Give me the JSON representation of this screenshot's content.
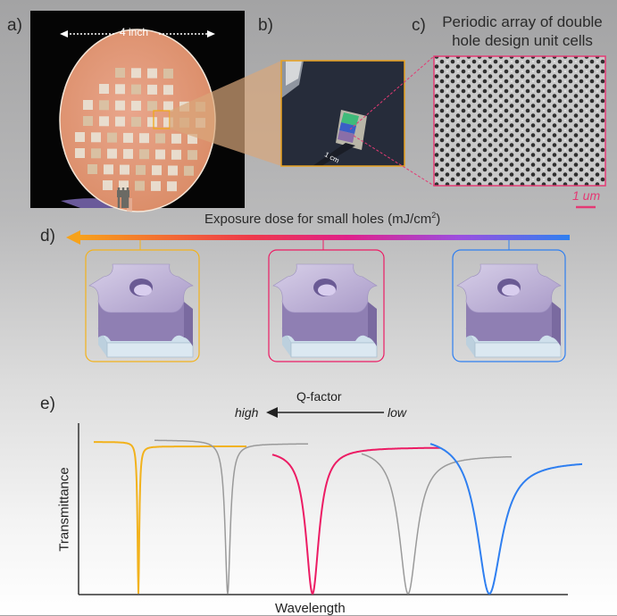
{
  "panels": {
    "a": {
      "label": "a)",
      "dimension_label": "4 inch"
    },
    "b": {
      "label": "b)",
      "chip_label": "1 cm"
    },
    "c": {
      "label": "c)",
      "title_line1": "Periodic array of double",
      "title_line2": "hole design unit cells",
      "scale_label": "1 um"
    },
    "d": {
      "label": "d)",
      "title_main": "Exposure dose for small holes (mJ/cm",
      "title_sup": "2",
      "title_end": ")"
    },
    "e": {
      "label": "e)",
      "qfactor": "Q-factor",
      "high": "high",
      "low": "low",
      "ylabel": "Transmittance",
      "xlabel": "Wavelength"
    }
  },
  "colors": {
    "orange": "#f2b21c",
    "pink": "#ec1c64",
    "blue": "#2f7ff0",
    "gray": "#9a9a9a",
    "frame_b": "#e8a11f",
    "frame_c": "#e43a74"
  }
}
